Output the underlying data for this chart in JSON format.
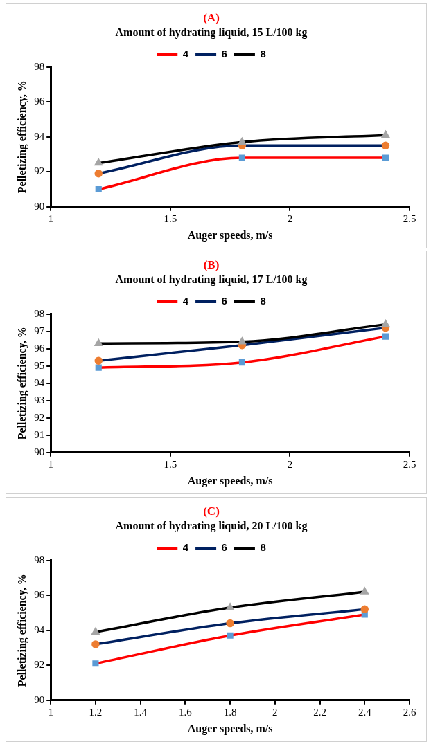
{
  "chart_data": [
    {
      "type": "line",
      "title": "(A)",
      "subtitle": "Amount of hydrating liquid, 15 L/100 kg",
      "xlabel": "Auger speeds, m/s",
      "ylabel": "Pelletizing efficiency, %",
      "x": [
        1.2,
        1.8,
        2.4
      ],
      "xlim": [
        1,
        2.5
      ],
      "xticks": [
        1,
        1.5,
        2,
        2.5
      ],
      "ylim": [
        90,
        98
      ],
      "yticks": [
        90,
        92,
        94,
        96,
        98
      ],
      "grid": false,
      "legend": "top",
      "series": [
        {
          "name": "4",
          "color": "#ff0000",
          "colors": [
            "#5b9bd5",
            "#5b9bd5",
            "#5b9bd5"
          ],
          "marker": "square",
          "values": [
            91.0,
            92.8,
            92.8
          ]
        },
        {
          "name": "6",
          "color": "#002060",
          "colors": [
            "#ed7d31",
            "#ed7d31",
            "#ed7d31"
          ],
          "marker": "circle",
          "values": [
            91.9,
            93.5,
            93.5
          ]
        },
        {
          "name": "8",
          "color": "#000000",
          "colors": [
            "#a5a5a5",
            "#a5a5a5",
            "#a5a5a5"
          ],
          "marker": "triangle",
          "values": [
            92.5,
            93.7,
            94.1
          ]
        }
      ]
    },
    {
      "type": "line",
      "title": "(B)",
      "subtitle": "Amount of hydrating liquid, 17 L/100 kg",
      "xlabel": "Auger speeds, m/s",
      "ylabel": "Pelletizing efficiency, %",
      "x": [
        1.2,
        1.8,
        2.4
      ],
      "xlim": [
        1,
        2.5
      ],
      "xticks": [
        1,
        1.5,
        2,
        2.5
      ],
      "ylim": [
        90,
        98
      ],
      "yticks": [
        90,
        91,
        92,
        93,
        94,
        95,
        96,
        97,
        98
      ],
      "grid": false,
      "legend": "top",
      "series": [
        {
          "name": "4",
          "color": "#ff0000",
          "colors": [
            "#5b9bd5",
            "#5b9bd5",
            "#5b9bd5"
          ],
          "marker": "square",
          "values": [
            94.9,
            95.2,
            96.7
          ]
        },
        {
          "name": "6",
          "color": "#002060",
          "colors": [
            "#ed7d31",
            "#ed7d31",
            "#ed7d31"
          ],
          "marker": "circle",
          "values": [
            95.3,
            96.2,
            97.2
          ]
        },
        {
          "name": "8",
          "color": "#000000",
          "colors": [
            "#a5a5a5",
            "#a5a5a5",
            "#a5a5a5"
          ],
          "marker": "triangle",
          "values": [
            96.3,
            96.4,
            97.4
          ]
        }
      ]
    },
    {
      "type": "line",
      "title": "(C)",
      "subtitle": "Amount of hydrating liquid, 20 L/100 kg",
      "xlabel": "Auger speeds, m/s",
      "ylabel": "Pelletizing efficiency, %",
      "x": [
        1.2,
        1.8,
        2.4
      ],
      "xlim": [
        1,
        2.6
      ],
      "xticks": [
        1,
        1.2,
        1.4,
        1.6,
        1.8,
        2,
        2.2,
        2.4,
        2.6
      ],
      "ylim": [
        90,
        98
      ],
      "yticks": [
        90,
        92,
        94,
        96,
        98
      ],
      "grid": false,
      "legend": "top",
      "series": [
        {
          "name": "4",
          "color": "#ff0000",
          "colors": [
            "#5b9bd5",
            "#5b9bd5",
            "#5b9bd5"
          ],
          "marker": "square",
          "values": [
            92.1,
            93.7,
            94.9
          ]
        },
        {
          "name": "6",
          "color": "#002060",
          "colors": [
            "#ed7d31",
            "#ed7d31",
            "#ed7d31"
          ],
          "marker": "circle",
          "values": [
            93.2,
            94.4,
            95.2
          ]
        },
        {
          "name": "8",
          "color": "#000000",
          "colors": [
            "#a5a5a5",
            "#a5a5a5",
            "#a5a5a5"
          ],
          "marker": "triangle",
          "values": [
            93.9,
            95.3,
            96.2
          ]
        }
      ]
    }
  ]
}
